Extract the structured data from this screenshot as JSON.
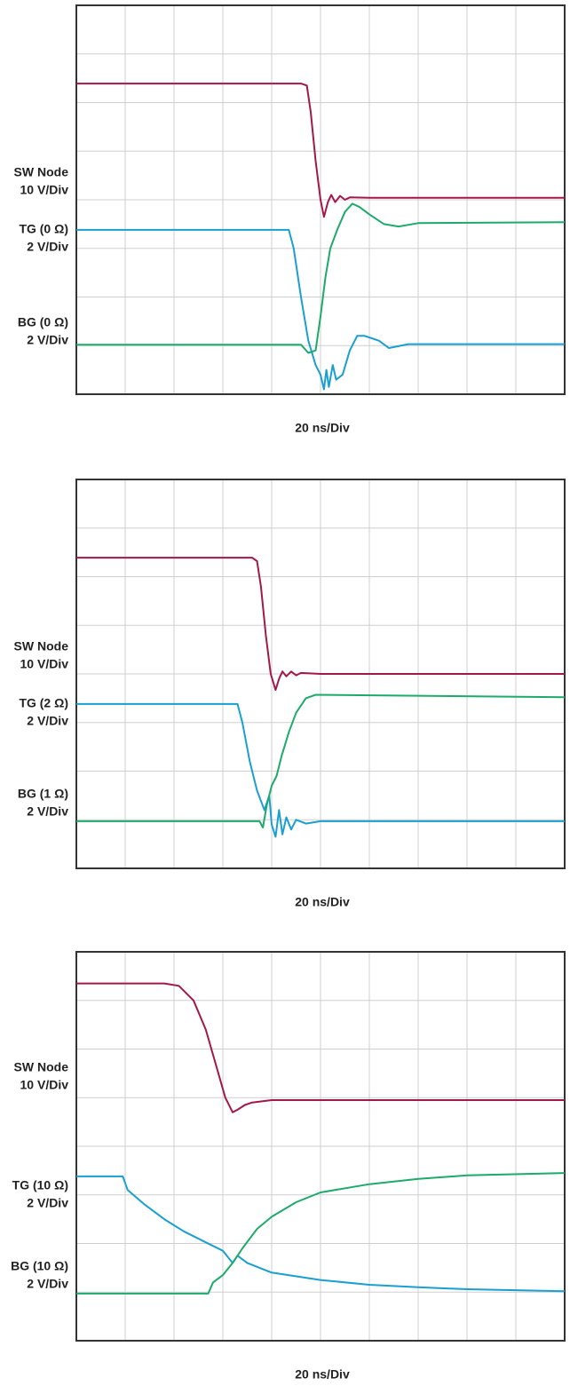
{
  "chart_data": [
    {
      "type": "line",
      "xlabel": "20 ns/Div",
      "xlim": [
        0,
        10
      ],
      "ylim": [
        0,
        8
      ],
      "xticks": [
        0,
        1,
        2,
        3,
        4,
        5,
        6,
        7,
        8,
        9,
        10
      ],
      "yticks": [
        0,
        1,
        2,
        3,
        4,
        5,
        6,
        7,
        8
      ],
      "grid": true,
      "series": [
        {
          "name": "SW Node",
          "scale": "10 V/Div",
          "color": "#a3184a",
          "x": [
            0,
            4.6,
            4.72,
            4.8,
            4.9,
            5.0,
            5.07,
            5.15,
            5.22,
            5.3,
            5.4,
            5.5,
            5.6,
            6,
            10
          ],
          "values": [
            6.39,
            6.39,
            6.35,
            5.8,
            4.8,
            4.0,
            3.65,
            3.95,
            4.1,
            3.95,
            4.08,
            4.0,
            4.05,
            4.04,
            4.04
          ]
        },
        {
          "name": "TG (0 Ω)",
          "scale": "2 V/Div",
          "color": "#1a9fd1",
          "x": [
            0,
            4.35,
            4.45,
            4.6,
            4.75,
            4.9,
            5.0,
            5.07,
            5.12,
            5.17,
            5.25,
            5.32,
            5.45,
            5.6,
            5.75,
            5.9,
            6.05,
            6.2,
            6.4,
            6.8,
            10
          ],
          "values": [
            3.38,
            3.38,
            3.0,
            2.0,
            1.1,
            0.6,
            0.4,
            0.1,
            0.5,
            0.15,
            0.6,
            0.3,
            0.4,
            0.9,
            1.2,
            1.2,
            1.15,
            1.1,
            0.95,
            1.03,
            1.03
          ]
        },
        {
          "name": "BG (0 Ω)",
          "scale": "2 V/Div",
          "color": "#1daa6b",
          "x": [
            0,
            4.6,
            4.75,
            4.9,
            5.0,
            5.1,
            5.2,
            5.35,
            5.5,
            5.65,
            5.8,
            6.0,
            6.3,
            6.6,
            7.0,
            10
          ],
          "values": [
            1.02,
            1.02,
            0.85,
            0.9,
            1.6,
            2.4,
            3.0,
            3.4,
            3.75,
            3.92,
            3.85,
            3.7,
            3.5,
            3.45,
            3.52,
            3.54
          ]
        }
      ]
    },
    {
      "type": "line",
      "xlabel": "20 ns/Div",
      "xlim": [
        0,
        10
      ],
      "ylim": [
        0,
        8
      ],
      "xticks": [
        0,
        1,
        2,
        3,
        4,
        5,
        6,
        7,
        8,
        9,
        10
      ],
      "yticks": [
        0,
        1,
        2,
        3,
        4,
        5,
        6,
        7,
        8
      ],
      "grid": true,
      "series": [
        {
          "name": "SW Node",
          "scale": "10 V/Div",
          "color": "#a3184a",
          "x": [
            0,
            3.6,
            3.7,
            3.78,
            3.88,
            3.98,
            4.08,
            4.15,
            4.22,
            4.3,
            4.4,
            4.5,
            4.6,
            5,
            10
          ],
          "values": [
            6.39,
            6.39,
            6.32,
            5.8,
            4.8,
            4.0,
            3.67,
            3.9,
            4.05,
            3.95,
            4.05,
            3.97,
            4.02,
            4.0,
            4.0
          ]
        },
        {
          "name": "TG (2 Ω)",
          "scale": "2 V/Div",
          "color": "#1a9fd1",
          "x": [
            0,
            3.3,
            3.4,
            3.55,
            3.7,
            3.85,
            3.95,
            4.0,
            4.08,
            4.15,
            4.22,
            4.3,
            4.4,
            4.5,
            4.7,
            5,
            10
          ],
          "values": [
            3.38,
            3.38,
            3.0,
            2.2,
            1.6,
            1.2,
            1.5,
            0.9,
            0.65,
            1.2,
            0.7,
            1.05,
            0.8,
            1.0,
            0.92,
            0.97,
            0.97
          ]
        },
        {
          "name": "BG (1 Ω)",
          "scale": "2 V/Div",
          "color": "#1daa6b",
          "x": [
            0,
            3.75,
            3.82,
            3.9,
            4.0,
            4.1,
            4.2,
            4.35,
            4.5,
            4.7,
            4.9,
            10
          ],
          "values": [
            0.97,
            0.97,
            0.84,
            1.3,
            1.7,
            1.9,
            2.3,
            2.8,
            3.2,
            3.5,
            3.57,
            3.52
          ]
        }
      ]
    },
    {
      "type": "line",
      "xlabel": "20 ns/Div",
      "xlim": [
        0,
        10
      ],
      "ylim": [
        0,
        8
      ],
      "xticks": [
        0,
        1,
        2,
        3,
        4,
        5,
        6,
        7,
        8,
        9,
        10
      ],
      "yticks": [
        0,
        1,
        2,
        3,
        4,
        5,
        6,
        7,
        8
      ],
      "grid": true,
      "series": [
        {
          "name": "SW Node",
          "scale": "10 V/Div",
          "color": "#a3184a",
          "x": [
            0,
            1.8,
            2.1,
            2.4,
            2.65,
            2.85,
            3.05,
            3.2,
            3.3,
            3.45,
            3.6,
            4,
            10
          ],
          "values": [
            7.35,
            7.35,
            7.3,
            7.0,
            6.4,
            5.7,
            5.0,
            4.7,
            4.75,
            4.85,
            4.9,
            4.95,
            4.95
          ]
        },
        {
          "name": "TG (10 Ω)",
          "scale": "2 V/Div",
          "color": "#1a9fd1",
          "x": [
            0,
            0.95,
            1.05,
            1.4,
            1.8,
            2.2,
            2.6,
            3.0,
            3.2,
            3.3,
            3.5,
            4,
            5,
            6,
            7,
            8,
            10
          ],
          "values": [
            3.38,
            3.38,
            3.1,
            2.8,
            2.5,
            2.25,
            2.05,
            1.85,
            1.6,
            1.75,
            1.6,
            1.4,
            1.25,
            1.15,
            1.1,
            1.06,
            1.02
          ]
        },
        {
          "name": "BG (10 Ω)",
          "scale": "2 V/Div",
          "color": "#1daa6b",
          "x": [
            0,
            2.7,
            2.8,
            3.0,
            3.2,
            3.4,
            3.7,
            4.0,
            4.5,
            5,
            6,
            7,
            8,
            10
          ],
          "values": [
            0.97,
            0.97,
            1.2,
            1.35,
            1.6,
            1.9,
            2.3,
            2.55,
            2.85,
            3.05,
            3.22,
            3.33,
            3.4,
            3.45
          ]
        }
      ]
    }
  ]
}
